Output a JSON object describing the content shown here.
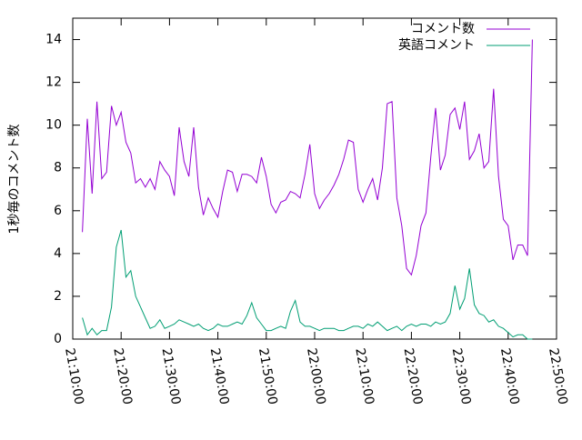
{
  "chart_data": {
    "type": "line",
    "ylabel": "1秒毎のコメント数",
    "x": [
      "21:12:00",
      "21:13:00",
      "21:14:00",
      "21:15:00",
      "21:16:00",
      "21:17:00",
      "21:18:00",
      "21:19:00",
      "21:20:00",
      "21:21:00",
      "21:22:00",
      "21:23:00",
      "21:24:00",
      "21:25:00",
      "21:26:00",
      "21:27:00",
      "21:28:00",
      "21:29:00",
      "21:30:00",
      "21:31:00",
      "21:32:00",
      "21:33:00",
      "21:34:00",
      "21:35:00",
      "21:36:00",
      "21:37:00",
      "21:38:00",
      "21:39:00",
      "21:40:00",
      "21:41:00",
      "21:42:00",
      "21:43:00",
      "21:44:00",
      "21:45:00",
      "21:46:00",
      "21:47:00",
      "21:48:00",
      "21:49:00",
      "21:50:00",
      "21:51:00",
      "21:52:00",
      "21:53:00",
      "21:54:00",
      "21:55:00",
      "21:56:00",
      "21:57:00",
      "21:58:00",
      "21:59:00",
      "22:00:00",
      "22:01:00",
      "22:02:00",
      "22:03:00",
      "22:04:00",
      "22:05:00",
      "22:06:00",
      "22:07:00",
      "22:08:00",
      "22:09:00",
      "22:10:00",
      "22:11:00",
      "22:12:00",
      "22:13:00",
      "22:14:00",
      "22:15:00",
      "22:16:00",
      "22:17:00",
      "22:18:00",
      "22:19:00",
      "22:20:00",
      "22:21:00",
      "22:22:00",
      "22:23:00",
      "22:24:00",
      "22:25:00",
      "22:26:00",
      "22:27:00",
      "22:28:00",
      "22:29:00",
      "22:30:00",
      "22:31:00",
      "22:32:00",
      "22:33:00",
      "22:34:00",
      "22:35:00",
      "22:36:00",
      "22:37:00",
      "22:38:00",
      "22:39:00",
      "22:40:00",
      "22:41:00",
      "22:42:00",
      "22:43:00",
      "22:44:00",
      "22:45:00"
    ],
    "series": [
      {
        "name": "コメント数",
        "color": "#9400d3",
        "values": [
          5,
          10.3,
          6.8,
          11.1,
          7.5,
          7.8,
          10.9,
          10,
          10.6,
          9.2,
          8.7,
          7.3,
          7.5,
          7.1,
          7.5,
          7,
          8.3,
          7.9,
          7.6,
          6.7,
          9.9,
          8.3,
          7.6,
          9.9,
          7.1,
          5.8,
          6.6,
          6.1,
          5.7,
          6.9,
          7.9,
          7.8,
          6.9,
          7.7,
          7.7,
          7.6,
          7.3,
          8.5,
          7.6,
          6.3,
          5.9,
          6.4,
          6.5,
          6.9,
          6.8,
          6.6,
          7.7,
          9.1,
          6.8,
          6.1,
          6.5,
          6.8,
          7.2,
          7.7,
          8.4,
          9.3,
          9.2,
          7,
          6.4,
          7,
          7.5,
          6.5,
          8,
          11,
          11.1,
          6.6,
          5.3,
          3.3,
          3,
          3.9,
          5.3,
          5.9,
          8.5,
          10.8,
          7.9,
          8.6,
          10.5,
          10.8,
          9.8,
          11.1,
          8.4,
          8.8,
          9.6,
          8,
          8.3,
          11.7,
          7.6,
          5.6,
          5.3,
          3.7,
          4.4,
          4.4,
          3.9,
          14
        ]
      },
      {
        "name": "英語コメント",
        "color": "#009e73",
        "values": [
          1,
          0.2,
          0.5,
          0.2,
          0.4,
          0.4,
          1.5,
          4.3,
          5.1,
          2.9,
          3.2,
          2,
          1.5,
          1,
          0.5,
          0.6,
          0.9,
          0.5,
          0.6,
          0.7,
          0.9,
          0.8,
          0.7,
          0.6,
          0.7,
          0.5,
          0.4,
          0.5,
          0.7,
          0.6,
          0.6,
          0.7,
          0.8,
          0.7,
          1.1,
          1.7,
          1,
          0.7,
          0.4,
          0.4,
          0.5,
          0.6,
          0.5,
          1.3,
          1.8,
          0.8,
          0.6,
          0.6,
          0.5,
          0.4,
          0.5,
          0.5,
          0.5,
          0.4,
          0.4,
          0.5,
          0.6,
          0.6,
          0.5,
          0.7,
          0.6,
          0.8,
          0.6,
          0.4,
          0.5,
          0.6,
          0.4,
          0.6,
          0.7,
          0.6,
          0.7,
          0.7,
          0.6,
          0.8,
          0.7,
          0.8,
          1.2,
          2.5,
          1.4,
          1.9,
          3.3,
          1.6,
          1.2,
          1.1,
          0.8,
          0.9,
          0.6,
          0.5,
          0.3,
          0.1,
          0.2,
          0.2,
          0,
          0
        ]
      }
    ],
    "xlim": [
      "21:10:00",
      "22:50:00"
    ],
    "xticks": [
      "21:10:00",
      "21:20:00",
      "21:30:00",
      "21:40:00",
      "21:50:00",
      "22:00:00",
      "22:10:00",
      "22:20:00",
      "22:30:00",
      "22:40:00",
      "22:50:00"
    ],
    "ylim": [
      0,
      15
    ],
    "yticks": [
      0,
      2,
      4,
      6,
      8,
      10,
      12,
      14
    ],
    "legend": "top-right"
  }
}
